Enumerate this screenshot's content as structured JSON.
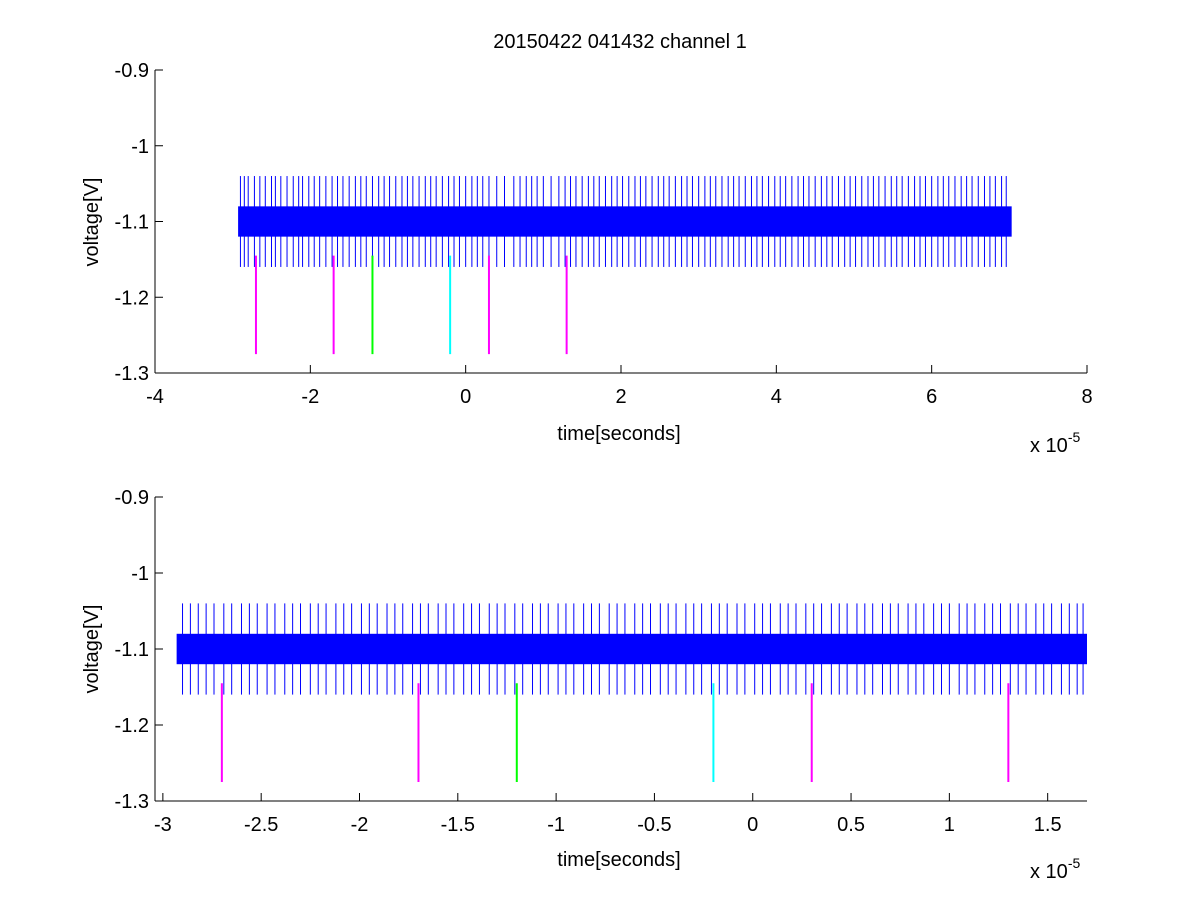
{
  "figure": {
    "title": "20150422 041432 channel 1"
  },
  "chart_data": [
    {
      "type": "line",
      "title": "20150422 041432 channel 1",
      "xlabel": "time[seconds]",
      "ylabel": "voltage[V]",
      "x_exponent_label": "x 10",
      "x_exponent": "-5",
      "xlim": [
        -4,
        8
      ],
      "ylim": [
        -1.3,
        -0.9
      ],
      "y_reversed": true,
      "xticks": [
        -4,
        -2,
        0,
        2,
        4,
        6,
        8
      ],
      "xtick_labels": [
        "-4",
        "-2",
        "0",
        "2",
        "4",
        "6",
        "8"
      ],
      "yticks": [
        -0.9,
        -1,
        -1.1,
        -1.2,
        -1.3
      ],
      "ytick_labels": [
        "-0.9",
        "-1",
        "-1.1",
        "-1.2",
        "-1.3"
      ],
      "grid": false,
      "series": [
        {
          "color": "#0000ff",
          "x_range": [
            -2.93,
            7.03
          ],
          "band": [
            -1.08,
            -1.12
          ],
          "spike_limits": [
            -1.04,
            -1.16
          ],
          "spike_x": [
            -2.9,
            -2.85,
            -2.8,
            -2.72,
            -2.65,
            -2.58,
            -2.5,
            -2.45,
            -2.38,
            -2.3,
            -2.22,
            -2.15,
            -2.1,
            -2.02,
            -1.95,
            -1.88,
            -1.8,
            -1.72,
            -1.65,
            -1.58,
            -1.5,
            -1.42,
            -1.35,
            -1.28,
            -1.2,
            -1.12,
            -1.05,
            -0.98,
            -0.9,
            -0.82,
            -0.75,
            -0.68,
            -0.6,
            -0.52,
            -0.45,
            -0.38,
            -0.3,
            -0.22,
            -0.15,
            -0.08,
            0.0,
            0.08,
            0.15,
            0.22,
            0.3,
            0.4,
            0.5,
            0.62,
            0.7,
            0.78,
            0.85,
            0.92,
            1.0,
            1.1,
            1.2,
            1.28,
            1.35,
            1.42,
            1.5,
            1.58,
            1.65,
            1.72,
            1.8,
            1.88,
            1.95,
            2.02,
            2.1,
            2.18,
            2.25,
            2.32,
            2.4,
            2.48,
            2.55,
            2.62,
            2.7,
            2.78,
            2.85,
            2.92,
            3.0,
            3.08,
            3.15,
            3.22,
            3.3,
            3.38,
            3.45,
            3.52,
            3.6,
            3.68,
            3.75,
            3.82,
            3.9,
            3.98,
            4.05,
            4.12,
            4.2,
            4.28,
            4.35,
            4.42,
            4.5,
            4.58,
            4.65,
            4.72,
            4.8,
            4.88,
            4.95,
            5.02,
            5.1,
            5.18,
            5.25,
            5.32,
            5.4,
            5.48,
            5.55,
            5.62,
            5.7,
            5.78,
            5.85,
            5.92,
            6.0,
            6.08,
            6.15,
            6.22,
            6.3,
            6.38,
            6.45,
            6.52,
            6.6,
            6.68,
            6.75,
            6.82,
            6.9,
            6.96
          ]
        }
      ],
      "markers": [
        {
          "x": -2.7,
          "color": "#ff00ff",
          "y_range": [
            -1.145,
            -1.275
          ]
        },
        {
          "x": -1.7,
          "color": "#ff00ff",
          "y_range": [
            -1.145,
            -1.275
          ]
        },
        {
          "x": -1.2,
          "color": "#00ff00",
          "y_range": [
            -1.145,
            -1.275
          ]
        },
        {
          "x": -0.2,
          "color": "#00ffff",
          "y_range": [
            -1.145,
            -1.275
          ]
        },
        {
          "x": 0.3,
          "color": "#ff00ff",
          "y_range": [
            -1.145,
            -1.275
          ]
        },
        {
          "x": 1.3,
          "color": "#ff00ff",
          "y_range": [
            -1.145,
            -1.275
          ]
        }
      ]
    },
    {
      "type": "line",
      "title": "",
      "xlabel": "time[seconds]",
      "ylabel": "voltage[V]",
      "x_exponent_label": "x 10",
      "x_exponent": "-5",
      "xlim": [
        -3.04,
        1.7
      ],
      "ylim": [
        -1.3,
        -0.9
      ],
      "y_reversed": true,
      "xticks": [
        -3,
        -2.5,
        -2,
        -1.5,
        -1,
        -0.5,
        0,
        0.5,
        1,
        1.5
      ],
      "xtick_labels": [
        "-3",
        "-2.5",
        "-2",
        "-1.5",
        "-1",
        "-0.5",
        "0",
        "0.5",
        "1",
        "1.5"
      ],
      "yticks": [
        -0.9,
        -1,
        -1.1,
        -1.2,
        -1.3
      ],
      "ytick_labels": [
        "-0.9",
        "-1",
        "-1.1",
        "-1.2",
        "-1.3"
      ],
      "grid": false,
      "series": [
        {
          "color": "#0000ff",
          "x_range": [
            -2.93,
            1.7
          ],
          "band": [
            -1.08,
            -1.12
          ],
          "spike_limits": [
            -1.04,
            -1.16
          ],
          "spike_x": [
            -2.9,
            -2.86,
            -2.82,
            -2.78,
            -2.74,
            -2.69,
            -2.65,
            -2.6,
            -2.56,
            -2.52,
            -2.47,
            -2.43,
            -2.38,
            -2.34,
            -2.3,
            -2.25,
            -2.21,
            -2.17,
            -2.12,
            -2.08,
            -2.04,
            -1.99,
            -1.95,
            -1.91,
            -1.86,
            -1.82,
            -1.78,
            -1.73,
            -1.69,
            -1.65,
            -1.6,
            -1.56,
            -1.52,
            -1.47,
            -1.43,
            -1.39,
            -1.34,
            -1.3,
            -1.26,
            -1.21,
            -1.17,
            -1.12,
            -1.08,
            -1.04,
            -0.99,
            -0.95,
            -0.91,
            -0.86,
            -0.82,
            -0.78,
            -0.73,
            -0.69,
            -0.65,
            -0.6,
            -0.56,
            -0.52,
            -0.47,
            -0.43,
            -0.39,
            -0.34,
            -0.3,
            -0.26,
            -0.21,
            -0.17,
            -0.13,
            -0.08,
            -0.04,
            0.01,
            0.05,
            0.09,
            0.14,
            0.18,
            0.22,
            0.27,
            0.31,
            0.35,
            0.4,
            0.44,
            0.48,
            0.53,
            0.57,
            0.61,
            0.66,
            0.7,
            0.74,
            0.79,
            0.83,
            0.87,
            0.92,
            0.96,
            1.0,
            1.05,
            1.09,
            1.13,
            1.18,
            1.22,
            1.26,
            1.31,
            1.35,
            1.39,
            1.44,
            1.48,
            1.52,
            1.57,
            1.61,
            1.65,
            1.68
          ]
        }
      ],
      "markers": [
        {
          "x": -2.7,
          "color": "#ff00ff",
          "y_range": [
            -1.145,
            -1.275
          ]
        },
        {
          "x": -1.7,
          "color": "#ff00ff",
          "y_range": [
            -1.145,
            -1.275
          ]
        },
        {
          "x": -1.2,
          "color": "#00ff00",
          "y_range": [
            -1.145,
            -1.275
          ]
        },
        {
          "x": -0.2,
          "color": "#00ffff",
          "y_range": [
            -1.145,
            -1.275
          ]
        },
        {
          "x": 0.3,
          "color": "#ff00ff",
          "y_range": [
            -1.145,
            -1.275
          ]
        },
        {
          "x": 1.3,
          "color": "#ff00ff",
          "y_range": [
            -1.145,
            -1.275
          ]
        }
      ]
    }
  ]
}
